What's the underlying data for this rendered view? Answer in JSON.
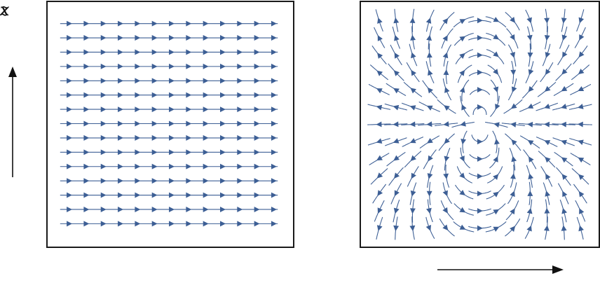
{
  "colors": {
    "field": "#3d5f95",
    "frame": "#1a1a1a",
    "axis": "#111111"
  },
  "axes": {
    "x_label": "x",
    "z_label": "z"
  },
  "left_panel": {
    "field_kind": "uniform",
    "direction": "+z",
    "rows": 15,
    "arrows_per_row": 13
  },
  "right_panel": {
    "field_kind": "dipole",
    "dipole_moment_direction": "-z"
  }
}
